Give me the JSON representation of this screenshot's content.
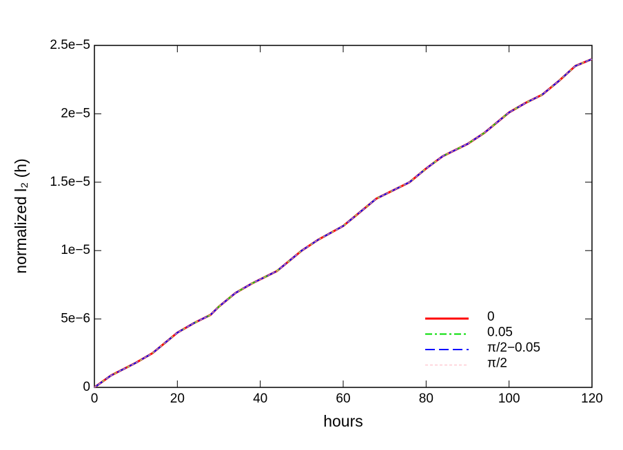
{
  "chart_data": {
    "type": "line",
    "xlabel": "hours",
    "ylabel": "normalized l₂ (h)",
    "x": [
      0,
      4,
      10,
      14,
      20,
      24,
      28,
      30,
      34,
      38,
      44,
      50,
      54,
      60,
      64,
      68,
      72,
      76,
      80,
      84,
      90,
      94,
      100,
      104,
      108,
      112,
      116,
      120
    ],
    "series": [
      {
        "name": "0",
        "color": "#ff0000",
        "style": "solid",
        "values": [
          0,
          8.7e-07,
          1.8e-06,
          2.5e-06,
          4e-06,
          4.7e-06,
          5.3e-06,
          5.9e-06,
          6.9e-06,
          7.6e-06,
          8.5e-06,
          1e-05,
          1.08e-05,
          1.18e-05,
          1.28e-05,
          1.38e-05,
          1.44e-05,
          1.5e-05,
          1.6e-05,
          1.69e-05,
          1.78e-05,
          1.86e-05,
          2.01e-05,
          2.08e-05,
          2.14e-05,
          2.24e-05,
          2.35e-05,
          2.4e-05
        ]
      },
      {
        "name": "0.05",
        "color": "#00dd00",
        "style": "dashdot",
        "values": [
          0,
          8.7e-07,
          1.8e-06,
          2.5e-06,
          4e-06,
          4.7e-06,
          5.3e-06,
          5.9e-06,
          6.9e-06,
          7.6e-06,
          8.5e-06,
          1e-05,
          1.08e-05,
          1.18e-05,
          1.28e-05,
          1.38e-05,
          1.44e-05,
          1.5e-05,
          1.6e-05,
          1.69e-05,
          1.78e-05,
          1.86e-05,
          2.01e-05,
          2.08e-05,
          2.14e-05,
          2.24e-05,
          2.35e-05,
          2.4e-05
        ]
      },
      {
        "name": "π/2−0.05",
        "color": "#0000ff",
        "style": "dashed",
        "values": [
          0,
          8.7e-07,
          1.8e-06,
          2.5e-06,
          4e-06,
          4.7e-06,
          5.3e-06,
          5.9e-06,
          6.9e-06,
          7.6e-06,
          8.5e-06,
          1e-05,
          1.08e-05,
          1.18e-05,
          1.28e-05,
          1.38e-05,
          1.44e-05,
          1.5e-05,
          1.6e-05,
          1.69e-05,
          1.78e-05,
          1.86e-05,
          2.01e-05,
          2.08e-05,
          2.14e-05,
          2.24e-05,
          2.35e-05,
          2.4e-05
        ]
      },
      {
        "name": "π/2",
        "color": "#ffb6c1",
        "style": "dotted",
        "values": [
          0,
          8.7e-07,
          1.8e-06,
          2.5e-06,
          4e-06,
          4.7e-06,
          5.3e-06,
          5.9e-06,
          6.9e-06,
          7.6e-06,
          8.5e-06,
          1e-05,
          1.08e-05,
          1.18e-05,
          1.28e-05,
          1.38e-05,
          1.44e-05,
          1.5e-05,
          1.6e-05,
          1.69e-05,
          1.78e-05,
          1.86e-05,
          2.01e-05,
          2.08e-05,
          2.14e-05,
          2.24e-05,
          2.35e-05,
          2.4e-05
        ]
      }
    ],
    "xlim": [
      0,
      120
    ],
    "xticks": [
      0,
      20,
      40,
      60,
      80,
      100,
      120
    ],
    "ylim": [
      0,
      2.5e-05
    ],
    "yticks": [
      0,
      {
        "value": 5e-06,
        "label": "5e−6"
      },
      {
        "value": 1e-05,
        "label": "1e−5"
      },
      {
        "value": 1.5e-05,
        "label": "1.5e−5"
      },
      {
        "value": 2e-05,
        "label": "2e−5"
      },
      {
        "value": 2.5e-05,
        "label": "2.5e−5"
      }
    ],
    "grid": false,
    "legend": "lower right"
  }
}
